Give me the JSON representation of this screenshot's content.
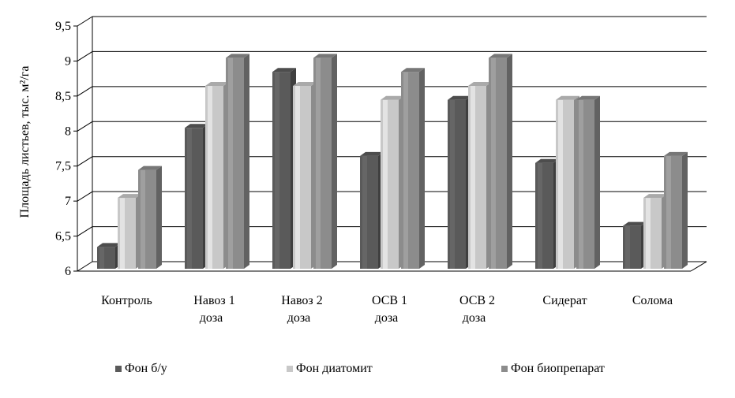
{
  "chart_data": {
    "type": "bar",
    "categories": [
      "Контроль",
      "Навоз 1 доза",
      "Навоз 2 доза",
      "ОСВ 1 доза",
      "ОСВ 2 доза",
      "Сидерат",
      "Солома"
    ],
    "category_lines": [
      [
        "Контроль"
      ],
      [
        "Навоз 1",
        "доза"
      ],
      [
        "Навоз 2",
        "доза"
      ],
      [
        "ОСВ 1",
        "доза"
      ],
      [
        "ОСВ 2",
        "доза"
      ],
      [
        "Сидерат"
      ],
      [
        "Солома"
      ]
    ],
    "series": [
      {
        "name": "Фон б/у",
        "color": "#5a5a5a",
        "values": [
          6.3,
          8.0,
          8.8,
          7.6,
          8.4,
          7.5,
          6.6
        ]
      },
      {
        "name": "Фон диатомит",
        "color": "#c8c8c8",
        "values": [
          7.0,
          8.6,
          8.6,
          8.4,
          8.6,
          8.4,
          7.0
        ]
      },
      {
        "name": "Фон биопрепарат",
        "color": "#8c8c8c",
        "values": [
          7.4,
          9.0,
          9.0,
          8.8,
          9.0,
          8.4,
          7.6
        ]
      }
    ],
    "ylabel": "Площадь листьев, тыс. м²/га",
    "ylim": [
      6,
      9.5
    ],
    "yticks": [
      "6",
      "6,5",
      "7",
      "7,5",
      "8",
      "8,5",
      "9",
      "9,5"
    ],
    "grid": true,
    "legend_position": "bottom"
  }
}
